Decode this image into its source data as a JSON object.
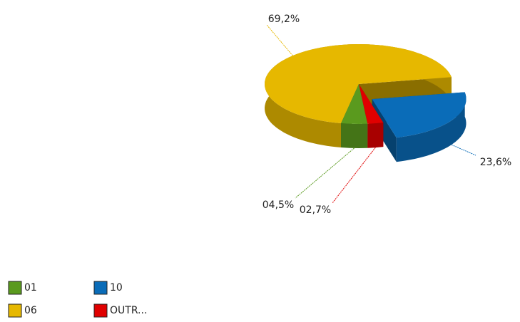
{
  "chart_data": {
    "type": "pie",
    "categories": [
      "01",
      "06",
      "10",
      "OUTR..."
    ],
    "values": [
      4.5,
      69.2,
      23.6,
      2.7
    ],
    "value_labels": [
      "04,5%",
      "69,2%",
      "23,6%",
      "02,7%"
    ],
    "colors": [
      "#5a9a1e",
      "#e6b800",
      "#0a6cb8",
      "#e00000"
    ],
    "legend": "bottom-left"
  }
}
